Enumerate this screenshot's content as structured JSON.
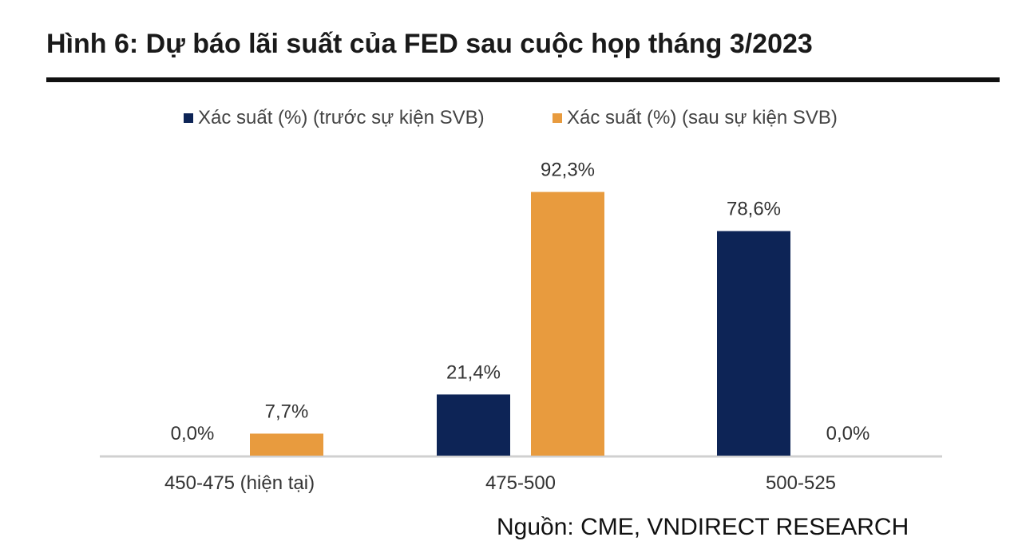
{
  "figure": {
    "title": "Hình 6: Dự báo lãi suất của FED sau cuộc họp tháng 3/2023",
    "source": "Nguồn: CME, VNDIRECT RESEARCH"
  },
  "chart_data": {
    "type": "bar",
    "title": "",
    "xlabel": "",
    "ylabel": "",
    "ylim": [
      0,
      100
    ],
    "grid": false,
    "legend_position": "top-center",
    "categories": [
      "450-475 (hiện tại)",
      "475-500",
      "500-525"
    ],
    "series": [
      {
        "name": "Xác suất (%) (trước sự kiện SVB)",
        "color": "#0d2456",
        "values": [
          0.0,
          21.4,
          78.6
        ],
        "labels": [
          "0,0%",
          "21,4%",
          "78,6%"
        ]
      },
      {
        "name": "Xác suất (%) (sau sự kiện SVB)",
        "color": "#e89b3e",
        "values": [
          7.7,
          92.3,
          0.0
        ],
        "labels": [
          "7,7%",
          "92,3%",
          "0,0%"
        ]
      }
    ]
  }
}
